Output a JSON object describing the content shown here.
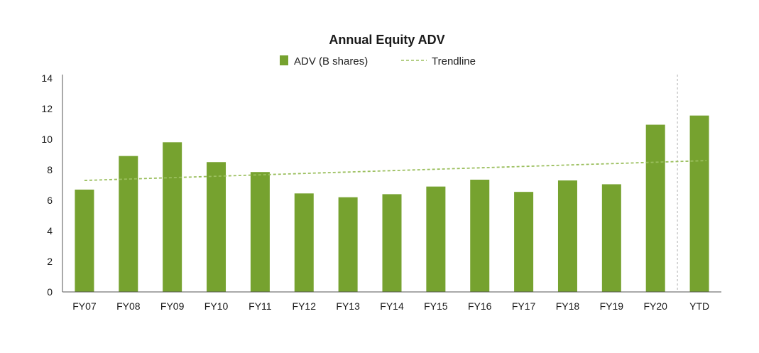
{
  "chart_data": {
    "type": "bar",
    "title": "Annual Equity ADV",
    "xlabel": "",
    "ylabel": "",
    "categories": [
      "FY07",
      "FY08",
      "FY09",
      "FY10",
      "FY11",
      "FY12",
      "FY13",
      "FY14",
      "FY15",
      "FY16",
      "FY17",
      "FY18",
      "FY19",
      "FY20",
      "YTD"
    ],
    "series": [
      {
        "name": "ADV (B shares)",
        "type": "bar",
        "color": "#76a22f",
        "values": [
          6.7,
          8.9,
          9.8,
          8.5,
          7.85,
          6.45,
          6.2,
          6.4,
          6.9,
          7.35,
          6.55,
          7.3,
          7.05,
          10.95,
          11.55
        ]
      },
      {
        "name": "Trendline",
        "type": "line",
        "style": "dashed",
        "color": "#9bbf5e",
        "start": 7.3,
        "end": 8.6
      }
    ],
    "ylim": [
      0,
      14
    ],
    "yticks": [
      0,
      2,
      4,
      6,
      8,
      10,
      12,
      14
    ],
    "legend_position": "top-center",
    "grid": false,
    "separator_before": "YTD"
  }
}
